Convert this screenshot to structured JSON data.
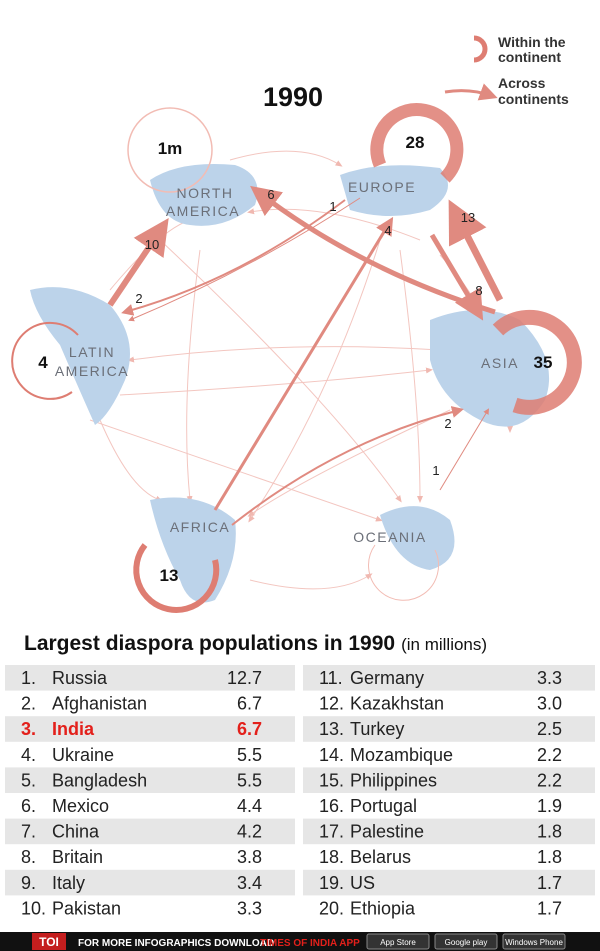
{
  "legend": {
    "within": [
      "Within the",
      "continent"
    ],
    "across": [
      "Across",
      "continents"
    ]
  },
  "year": "1990",
  "scale_note": "1m",
  "regions": {
    "north_america": [
      "NORTH",
      "AMERICA"
    ],
    "europe": "EUROPE",
    "latin_america": [
      "LATIN",
      "AMERICA"
    ],
    "asia": "ASIA",
    "africa": "AFRICA",
    "oceania": "OCEANIA"
  },
  "within": {
    "europe": "28",
    "asia": "35",
    "latin_america": "4",
    "africa": "13"
  },
  "flows": {
    "asia_to_north_america": "6",
    "europe_to_latin_america_small": "1",
    "africa_to_europe": "4",
    "asia_to_europe": "13",
    "europe_to_asia": "8",
    "latin_to_north_america": "10",
    "europe_to_latin_america": "2",
    "africa_to_asia": "2",
    "oceania_to_asia": "1"
  },
  "table": {
    "title": "Largest diaspora populations in 1990",
    "unit": "(in millions)",
    "rows": [
      {
        "rank": "1.",
        "country": "Russia",
        "value": "12.7"
      },
      {
        "rank": "2.",
        "country": "Afghanistan",
        "value": "6.7"
      },
      {
        "rank": "3.",
        "country": "India",
        "value": "6.7",
        "highlight": true
      },
      {
        "rank": "4.",
        "country": "Ukraine",
        "value": "5.5"
      },
      {
        "rank": "5.",
        "country": "Bangladesh",
        "value": "5.5"
      },
      {
        "rank": "6.",
        "country": "Mexico",
        "value": "4.4"
      },
      {
        "rank": "7.",
        "country": "China",
        "value": "4.2"
      },
      {
        "rank": "8.",
        "country": "Britain",
        "value": "3.8"
      },
      {
        "rank": "9.",
        "country": "Italy",
        "value": "3.4"
      },
      {
        "rank": "10.",
        "country": "Pakistan",
        "value": "3.3"
      },
      {
        "rank": "11.",
        "country": "Germany",
        "value": "3.3"
      },
      {
        "rank": "12.",
        "country": "Kazakhstan",
        "value": "3.0"
      },
      {
        "rank": "13.",
        "country": "Turkey",
        "value": "2.5"
      },
      {
        "rank": "14.",
        "country": "Mozambique",
        "value": "2.2"
      },
      {
        "rank": "15.",
        "country": "Philippines",
        "value": "2.2"
      },
      {
        "rank": "16.",
        "country": "Portugal",
        "value": "1.9"
      },
      {
        "rank": "17.",
        "country": "Palestine",
        "value": "1.8"
      },
      {
        "rank": "18.",
        "country": "Belarus",
        "value": "1.8"
      },
      {
        "rank": "19.",
        "country": "US",
        "value": "1.7"
      },
      {
        "rank": "20.",
        "country": "Ethiopia",
        "value": "1.7"
      }
    ]
  },
  "footer": {
    "brand": "TOI",
    "text": "FOR MORE INFOGRAPHICS DOWNLOAD",
    "app": "TIMES OF INDIA APP",
    "stores": [
      "App Store",
      "Google play",
      "Windows Phone"
    ]
  }
}
